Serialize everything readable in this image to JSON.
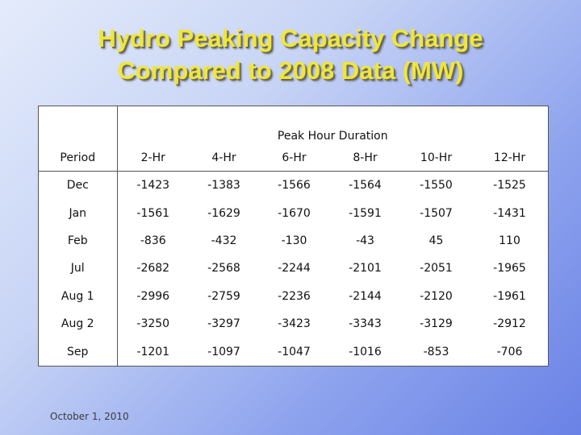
{
  "slide": {
    "title_line1": "Hydro Peaking Capacity Change",
    "title_line2": "Compared to 2008 Data (MW)",
    "footer_date": "October 1, 2010"
  },
  "table": {
    "group_header": "Peak Hour Duration",
    "columns": [
      "Period",
      "2-Hr",
      "4-Hr",
      "6-Hr",
      "8-Hr",
      "10-Hr",
      "12-Hr"
    ],
    "rows": [
      [
        "Dec",
        "-1423",
        "-1383",
        "-1566",
        "-1564",
        "-1550",
        "-1525"
      ],
      [
        "Jan",
        "-1561",
        "-1629",
        "-1670",
        "-1591",
        "-1507",
        "-1431"
      ],
      [
        "Feb",
        "-836",
        "-432",
        "-130",
        "-43",
        "45",
        "110"
      ],
      [
        "Jul",
        "-2682",
        "-2568",
        "-2244",
        "-2101",
        "-2051",
        "-1965"
      ],
      [
        "Aug 1",
        "-2996",
        "-2759",
        "-2236",
        "-2144",
        "-2120",
        "-1961"
      ],
      [
        "Aug 2",
        "-3250",
        "-3297",
        "-3423",
        "-3343",
        "-3129",
        "-2912"
      ],
      [
        "Sep",
        "-1201",
        "-1097",
        "-1047",
        "-1016",
        "-853",
        "-706"
      ]
    ]
  },
  "colors": {
    "title": "#f0e63a",
    "border": "#555555"
  }
}
